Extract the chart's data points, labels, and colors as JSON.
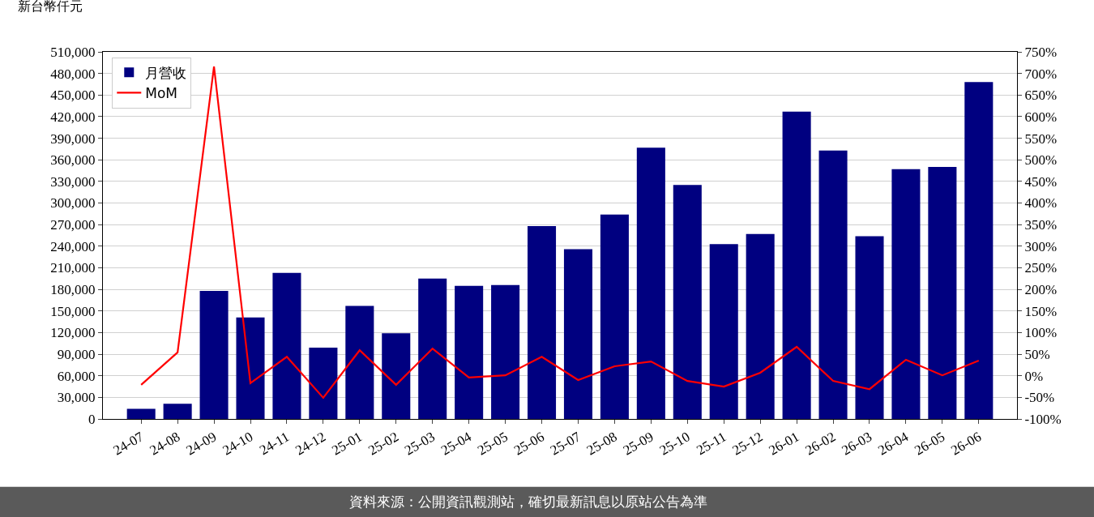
{
  "chart_data": {
    "type": "bar",
    "ylabel": "新台幣仟元",
    "categories": [
      "24-07",
      "24-08",
      "24-09",
      "24-10",
      "24-11",
      "24-12",
      "25-01",
      "25-02",
      "25-03",
      "25-04",
      "25-05",
      "25-06",
      "25-07",
      "25-08",
      "25-09",
      "25-10",
      "25-11",
      "25-12",
      "26-01",
      "26-02",
      "26-03",
      "26-04",
      "26-05",
      "26-06"
    ],
    "series": [
      {
        "name": "月營收",
        "color": "#000080",
        "values": [
          14000,
          21000,
          178000,
          141000,
          203000,
          99000,
          157000,
          119000,
          195000,
          185000,
          186000,
          268000,
          236000,
          284000,
          377000,
          325000,
          243000,
          257000,
          427000,
          373000,
          254000,
          347000,
          350000,
          468000
        ]
      },
      {
        "name": "MoM",
        "type": "line",
        "axis": "y2",
        "color": "#ff0000",
        "line_style": "solid",
        "marker": "none",
        "values": [
          -21,
          54,
          716,
          -17,
          44,
          -51,
          59,
          -21,
          63,
          -4,
          1,
          44,
          -10,
          22,
          33,
          -12,
          -25,
          7,
          67,
          -12,
          -31,
          37,
          1,
          35
        ]
      }
    ],
    "ylim": [
      0,
      510000
    ],
    "yticks": [
      {
        "value": 0,
        "label": "0"
      },
      {
        "value": 30000,
        "label": "30,000"
      },
      {
        "value": 60000,
        "label": "60,000"
      },
      {
        "value": 90000,
        "label": "90,000"
      },
      {
        "value": 120000,
        "label": "120,000"
      },
      {
        "value": 150000,
        "label": "150,000"
      },
      {
        "value": 180000,
        "label": "180,000"
      },
      {
        "value": 210000,
        "label": "210,000"
      },
      {
        "value": 240000,
        "label": "240,000"
      },
      {
        "value": 270000,
        "label": "270,000"
      },
      {
        "value": 300000,
        "label": "300,000"
      },
      {
        "value": 330000,
        "label": "330,000"
      },
      {
        "value": 360000,
        "label": "360,000"
      },
      {
        "value": 390000,
        "label": "390,000"
      },
      {
        "value": 420000,
        "label": "420,000"
      },
      {
        "value": 450000,
        "label": "450,000"
      },
      {
        "value": 480000,
        "label": "480,000"
      },
      {
        "value": 510000,
        "label": "510,000"
      }
    ],
    "y2lim": [
      -100,
      750
    ],
    "y2ticks": [
      {
        "value": -100,
        "label": "-100%"
      },
      {
        "value": -50,
        "label": "-50%"
      },
      {
        "value": 0,
        "label": "0%"
      },
      {
        "value": 50,
        "label": "50%"
      },
      {
        "value": 100,
        "label": "100%"
      },
      {
        "value": 150,
        "label": "150%"
      },
      {
        "value": 200,
        "label": "200%"
      },
      {
        "value": 250,
        "label": "250%"
      },
      {
        "value": 300,
        "label": "300%"
      },
      {
        "value": 350,
        "label": "350%"
      },
      {
        "value": 400,
        "label": "400%"
      },
      {
        "value": 450,
        "label": "450%"
      },
      {
        "value": 500,
        "label": "500%"
      },
      {
        "value": 550,
        "label": "550%"
      },
      {
        "value": 600,
        "label": "600%"
      },
      {
        "value": 650,
        "label": "650%"
      },
      {
        "value": 700,
        "label": "700%"
      },
      {
        "value": 750,
        "label": "750%"
      }
    ],
    "grid": "y",
    "legend": "top left",
    "annotations": [
      "資料來源：公開資訊觀測站，確切最新訊息以原站公告為準"
    ]
  }
}
